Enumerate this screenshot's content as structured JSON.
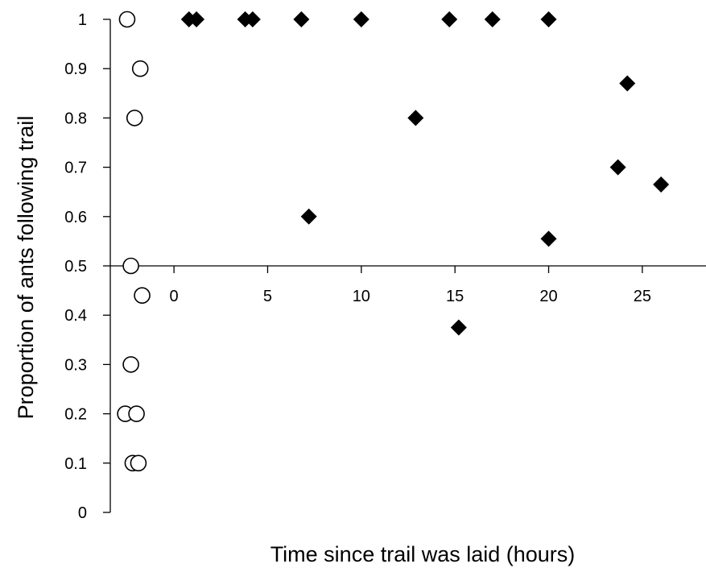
{
  "chart_data": {
    "type": "scatter",
    "title": "",
    "xlabel": "Time since trail was laid (hours)",
    "ylabel": "Proportion of ants following trail",
    "xlim": [
      -3.4,
      28.4
    ],
    "ylim": [
      0,
      1
    ],
    "x_ticks": [
      0,
      5,
      10,
      15,
      20,
      25
    ],
    "y_ticks": [
      0,
      0.1,
      0.2,
      0.3,
      0.4,
      0.5,
      0.6,
      0.7,
      0.8,
      0.9,
      1
    ],
    "x_axis_crosses_at_y": 0.5,
    "grid": false,
    "legend": "none",
    "series": [
      {
        "marker": "open-circle",
        "color": "#000000",
        "points": [
          {
            "x": -2.5,
            "y": 1.0
          },
          {
            "x": -1.8,
            "y": 0.9
          },
          {
            "x": -2.1,
            "y": 0.8
          },
          {
            "x": -2.3,
            "y": 0.5
          },
          {
            "x": -1.7,
            "y": 0.44
          },
          {
            "x": -2.3,
            "y": 0.3
          },
          {
            "x": -2.6,
            "y": 0.2
          },
          {
            "x": -2.0,
            "y": 0.2
          },
          {
            "x": -2.2,
            "y": 0.1
          },
          {
            "x": -1.9,
            "y": 0.1
          }
        ]
      },
      {
        "marker": "filled-diamond",
        "color": "#000000",
        "points": [
          {
            "x": 0.8,
            "y": 1.0
          },
          {
            "x": 1.2,
            "y": 1.0
          },
          {
            "x": 3.8,
            "y": 1.0
          },
          {
            "x": 4.2,
            "y": 1.0
          },
          {
            "x": 6.8,
            "y": 1.0
          },
          {
            "x": 10.0,
            "y": 1.0
          },
          {
            "x": 14.7,
            "y": 1.0
          },
          {
            "x": 17.0,
            "y": 1.0
          },
          {
            "x": 20.0,
            "y": 1.0
          },
          {
            "x": 24.2,
            "y": 0.87
          },
          {
            "x": 12.9,
            "y": 0.8
          },
          {
            "x": 23.7,
            "y": 0.7
          },
          {
            "x": 26.0,
            "y": 0.665
          },
          {
            "x": 7.2,
            "y": 0.6
          },
          {
            "x": 20.0,
            "y": 0.555
          },
          {
            "x": 15.2,
            "y": 0.375
          }
        ]
      }
    ]
  }
}
